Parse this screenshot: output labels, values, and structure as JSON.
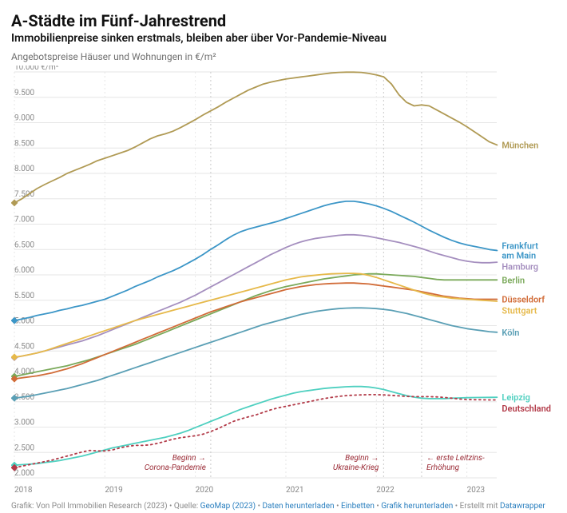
{
  "header": {
    "title": "A-Städte im Fünf-Jahrestrend",
    "subtitle": "Immobilienpreise sinken erstmals, bleiben aber über Vor-Pandemie-Niveau",
    "description": "Angebotspreise Häuser und Wohnungen in €/m²"
  },
  "chart": {
    "type": "line",
    "background_color": "#ffffff",
    "grid_color": "#e6e6e6",
    "axis_text_color": "#888888",
    "xlim": [
      2018.0,
      2023.33
    ],
    "ylim": [
      2000,
      10000
    ],
    "ytick_step": 500,
    "ytick_top_label": "10.000 €/m²",
    "xticks": [
      2018,
      2019,
      2020,
      2021,
      2022,
      2023
    ],
    "quarter_step": 0.083333,
    "start_marker": "diamond",
    "marker_size": 4.5,
    "line_width": 1.8,
    "label_fontsize": 11,
    "series": [
      {
        "name": "München",
        "label": "München",
        "color": "#b09a54",
        "values": [
          7420,
          7500,
          7600,
          7700,
          7780,
          7850,
          7920,
          8000,
          8060,
          8120,
          8180,
          8250,
          8300,
          8350,
          8400,
          8450,
          8520,
          8600,
          8680,
          8740,
          8780,
          8830,
          8900,
          8980,
          9060,
          9150,
          9230,
          9310,
          9400,
          9480,
          9560,
          9640,
          9700,
          9760,
          9800,
          9830,
          9860,
          9880,
          9900,
          9920,
          9940,
          9960,
          9980,
          9990,
          9995,
          9995,
          9990,
          9970,
          9940,
          9900,
          9760,
          9550,
          9400,
          9330,
          9350,
          9330,
          9250,
          9170,
          9090,
          9010,
          8920,
          8820,
          8720,
          8620,
          8560
        ]
      },
      {
        "name": "Frankfurt am Main",
        "label": "Frankfurt\nam Main",
        "color": "#3c96c7",
        "values": [
          5100,
          5130,
          5160,
          5200,
          5230,
          5260,
          5300,
          5330,
          5370,
          5400,
          5440,
          5480,
          5520,
          5580,
          5640,
          5700,
          5770,
          5830,
          5890,
          5960,
          6020,
          6080,
          6150,
          6230,
          6310,
          6400,
          6500,
          6590,
          6690,
          6780,
          6850,
          6900,
          6940,
          6980,
          7020,
          7060,
          7110,
          7160,
          7210,
          7260,
          7310,
          7360,
          7400,
          7430,
          7450,
          7450,
          7430,
          7400,
          7360,
          7310,
          7250,
          7180,
          7110,
          7040,
          6960,
          6880,
          6810,
          6740,
          6680,
          6630,
          6590,
          6560,
          6530,
          6500,
          6480
        ]
      },
      {
        "name": "Hamburg",
        "label": "Hamburg",
        "color": "#a58fbf",
        "values": [
          4370,
          4400,
          4430,
          4460,
          4500,
          4540,
          4580,
          4620,
          4660,
          4700,
          4750,
          4800,
          4860,
          4920,
          4980,
          5040,
          5100,
          5160,
          5220,
          5280,
          5340,
          5400,
          5460,
          5530,
          5600,
          5680,
          5760,
          5840,
          5920,
          6000,
          6080,
          6160,
          6240,
          6320,
          6400,
          6470,
          6540,
          6600,
          6650,
          6690,
          6720,
          6740,
          6760,
          6780,
          6790,
          6790,
          6780,
          6760,
          6730,
          6700,
          6670,
          6640,
          6600,
          6560,
          6520,
          6470,
          6420,
          6380,
          6340,
          6300,
          6270,
          6250,
          6240,
          6240,
          6250
        ]
      },
      {
        "name": "Berlin",
        "label": "Berlin",
        "color": "#7aa95a",
        "values": [
          4000,
          4030,
          4060,
          4090,
          4120,
          4150,
          4180,
          4210,
          4250,
          4290,
          4330,
          4380,
          4430,
          4480,
          4530,
          4580,
          4630,
          4690,
          4750,
          4810,
          4870,
          4930,
          4990,
          5050,
          5110,
          5170,
          5230,
          5290,
          5350,
          5410,
          5470,
          5530,
          5590,
          5640,
          5690,
          5730,
          5770,
          5800,
          5830,
          5860,
          5890,
          5920,
          5940,
          5960,
          5980,
          6000,
          6010,
          6020,
          6020,
          6010,
          6000,
          5990,
          5980,
          5970,
          5950,
          5930,
          5910,
          5900,
          5900,
          5900,
          5900,
          5900,
          5900,
          5900,
          5900
        ]
      },
      {
        "name": "Düsseldorf",
        "label": "Düsseldorf",
        "color": "#d16b37",
        "values": [
          3950,
          3970,
          3990,
          4010,
          4040,
          4070,
          4110,
          4150,
          4200,
          4250,
          4310,
          4370,
          4430,
          4490,
          4550,
          4610,
          4670,
          4730,
          4790,
          4850,
          4910,
          4970,
          5030,
          5090,
          5150,
          5210,
          5270,
          5320,
          5370,
          5420,
          5470,
          5510,
          5550,
          5590,
          5630,
          5670,
          5710,
          5740,
          5770,
          5790,
          5810,
          5820,
          5830,
          5835,
          5840,
          5840,
          5830,
          5820,
          5800,
          5780,
          5760,
          5740,
          5720,
          5700,
          5670,
          5640,
          5610,
          5580,
          5560,
          5540,
          5530,
          5520,
          5520,
          5520,
          5520
        ]
      },
      {
        "name": "Stuttgart",
        "label": "Stuttgart",
        "color": "#e6b94a",
        "values": [
          4380,
          4400,
          4430,
          4460,
          4500,
          4550,
          4600,
          4650,
          4700,
          4750,
          4800,
          4850,
          4900,
          4950,
          5000,
          5050,
          5100,
          5140,
          5180,
          5220,
          5260,
          5300,
          5340,
          5380,
          5420,
          5460,
          5500,
          5540,
          5580,
          5620,
          5660,
          5700,
          5740,
          5780,
          5820,
          5860,
          5900,
          5930,
          5960,
          5980,
          5995,
          6010,
          6020,
          6025,
          6030,
          6030,
          6020,
          5990,
          5950,
          5900,
          5850,
          5800,
          5750,
          5700,
          5650,
          5610,
          5580,
          5560,
          5540,
          5530,
          5520,
          5510,
          5500,
          5490,
          5480
        ]
      },
      {
        "name": "Köln",
        "label": "Köln",
        "color": "#5a9fb5",
        "values": [
          3570,
          3590,
          3610,
          3640,
          3670,
          3700,
          3730,
          3760,
          3800,
          3840,
          3880,
          3920,
          3970,
          4020,
          4070,
          4120,
          4170,
          4220,
          4270,
          4320,
          4370,
          4420,
          4470,
          4520,
          4570,
          4620,
          4670,
          4720,
          4770,
          4820,
          4870,
          4920,
          4970,
          5020,
          5060,
          5100,
          5140,
          5180,
          5220,
          5250,
          5280,
          5300,
          5320,
          5335,
          5345,
          5350,
          5350,
          5345,
          5335,
          5320,
          5300,
          5270,
          5240,
          5200,
          5160,
          5120,
          5080,
          5040,
          5000,
          4970,
          4940,
          4920,
          4900,
          4880,
          4870
        ]
      },
      {
        "name": "Leipzig",
        "label": "Leipzig",
        "color": "#4fd0c0",
        "values": [
          2250,
          2260,
          2270,
          2280,
          2300,
          2320,
          2340,
          2370,
          2400,
          2430,
          2470,
          2510,
          2550,
          2590,
          2620,
          2650,
          2680,
          2710,
          2740,
          2770,
          2800,
          2840,
          2880,
          2930,
          2990,
          3050,
          3110,
          3170,
          3230,
          3290,
          3350,
          3400,
          3450,
          3500,
          3550,
          3590,
          3630,
          3670,
          3700,
          3720,
          3740,
          3760,
          3775,
          3785,
          3795,
          3800,
          3800,
          3790,
          3770,
          3740,
          3700,
          3660,
          3620,
          3590,
          3570,
          3560,
          3560,
          3560,
          3570,
          3575,
          3580,
          3582,
          3584,
          3586,
          3588
        ]
      },
      {
        "name": "Deutschland",
        "label": "Deutschland",
        "color": "#b23a48",
        "dashed": true,
        "values": [
          2200,
          2230,
          2260,
          2290,
          2320,
          2350,
          2390,
          2430,
          2470,
          2510,
          2540,
          2530,
          2530,
          2550,
          2590,
          2620,
          2640,
          2640,
          2650,
          2680,
          2720,
          2760,
          2790,
          2810,
          2830,
          2860,
          2910,
          2970,
          3040,
          3110,
          3160,
          3200,
          3240,
          3290,
          3340,
          3380,
          3410,
          3440,
          3470,
          3500,
          3530,
          3560,
          3585,
          3605,
          3620,
          3630,
          3635,
          3640,
          3640,
          3635,
          3625,
          3615,
          3605,
          3600,
          3600,
          3600,
          3595,
          3585,
          3570,
          3555,
          3545,
          3540,
          3538,
          3536,
          3535
        ]
      }
    ],
    "annotations": [
      {
        "x": 2020.17,
        "text1": "Beginn",
        "arrow": "→",
        "text2": "Corona-Pandemie",
        "color": "#9a2a35"
      },
      {
        "x": 2022.08,
        "text1": "Beginn",
        "arrow": "→",
        "text2": "Ukraine-Krieg",
        "color": "#9a2a35"
      },
      {
        "x": 2022.5,
        "text1": "erste Leitzins-",
        "arrow": "←",
        "text2": "Erhöhung",
        "color": "#9a2a35",
        "arrow_left": true
      }
    ]
  },
  "footer": {
    "prefix": "Grafik: Von Poll Immobilien Research (2023) • Quelle: ",
    "links": [
      "GeoMap (2023)",
      "Daten herunterladen",
      "Einbetten",
      "Grafik herunterladen"
    ],
    "suffix": " • Erstellt mit ",
    "tool": "Datawrapper",
    "link_color": "#2a7fbf"
  }
}
